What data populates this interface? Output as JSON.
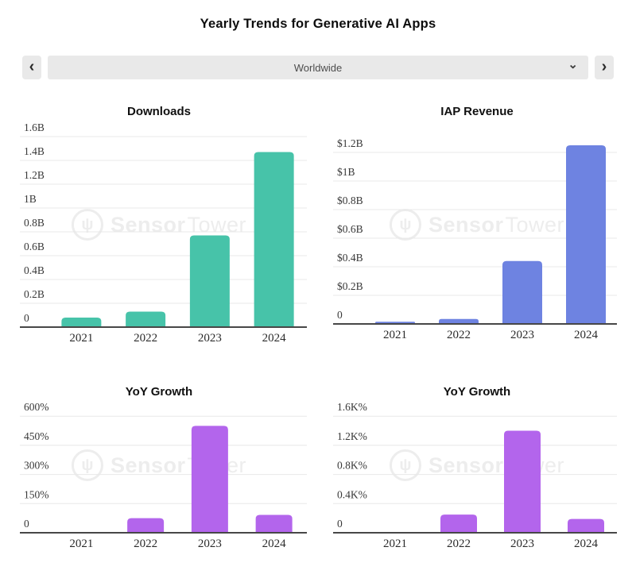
{
  "header": {
    "title": "Yearly Trends for Generative AI Apps"
  },
  "controls": {
    "prev_label": "‹",
    "next_label": "›",
    "selected_region": "Worldwide",
    "chevron_glyph": "⌄"
  },
  "watermark": {
    "logo_glyph": "ψ",
    "brand_first": "Sensor",
    "brand_second": "Tower"
  },
  "colors": {
    "downloads_bar": "#47c3a9",
    "revenue_bar": "#6e83e1",
    "growth_bar": "#b365ec",
    "gridline": "#e8e8e8",
    "axis_line": "#474747",
    "tick_text": "#383838",
    "control_bg": "#e9e9e9"
  },
  "chart_data": [
    {
      "type": "bar",
      "title": "Downloads",
      "categories": [
        "2021",
        "2022",
        "2023",
        "2024"
      ],
      "values": [
        0.08,
        0.13,
        0.77,
        1.47
      ],
      "value_unit": "billions of downloads",
      "ytick_labels": [
        "0",
        "0.2B",
        "0.4B",
        "0.6B",
        "0.8B",
        "1B",
        "1.2B",
        "1.4B",
        "1.6B"
      ],
      "ytick_values": [
        0,
        0.2,
        0.4,
        0.6,
        0.8,
        1,
        1.2,
        1.4,
        1.6
      ],
      "ylim": [
        0,
        1.6
      ],
      "xlabel": "",
      "ylabel": "",
      "grid": true,
      "legend": null,
      "bar_color": "#47c3a9"
    },
    {
      "type": "bar",
      "title": "IAP Revenue",
      "categories": [
        "2021",
        "2022",
        "2023",
        "2024"
      ],
      "values": [
        0.015,
        0.035,
        0.44,
        1.25
      ],
      "value_unit": "billions USD",
      "ytick_labels": [
        "0",
        "$0.2B",
        "$0.4B",
        "$0.6B",
        "$0.8B",
        "$1B",
        "$1.2B"
      ],
      "ytick_values": [
        0,
        0.2,
        0.4,
        0.6,
        0.8,
        1,
        1.2
      ],
      "ylim": [
        0,
        1.2
      ],
      "xlabel": "",
      "ylabel": "",
      "grid": true,
      "legend": null,
      "bar_color": "#6e83e1"
    },
    {
      "type": "bar",
      "title": "YoY Growth",
      "categories": [
        "2021",
        "2022",
        "2023",
        "2024"
      ],
      "values": [
        3,
        75,
        550,
        92
      ],
      "value_unit": "percent (downloads growth)",
      "ytick_labels": [
        "0",
        "150%",
        "300%",
        "450%",
        "600%"
      ],
      "ytick_values": [
        0,
        150,
        300,
        450,
        600
      ],
      "ylim": [
        0,
        600
      ],
      "xlabel": "",
      "ylabel": "",
      "grid": true,
      "legend": null,
      "bar_color": "#b365ec"
    },
    {
      "type": "bar",
      "title": "YoY Growth",
      "categories": [
        "2021",
        "2022",
        "2023",
        "2024"
      ],
      "values": [
        0.01,
        0.25,
        1.4,
        0.19
      ],
      "value_unit": "K percent (revenue growth)",
      "ytick_labels": [
        "0",
        "0.4K%",
        "0.8K%",
        "1.2K%",
        "1.6K%"
      ],
      "ytick_values": [
        0,
        0.4,
        0.8,
        1.2,
        1.6
      ],
      "ylim": [
        0,
        1.6
      ],
      "xlabel": "",
      "ylabel": "",
      "grid": true,
      "legend": null,
      "bar_color": "#b365ec"
    }
  ]
}
